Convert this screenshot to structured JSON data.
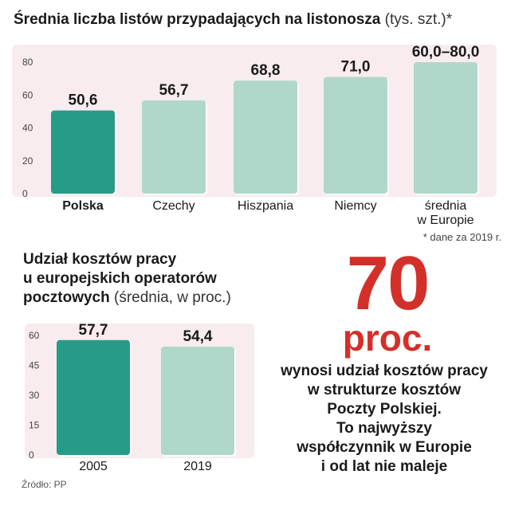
{
  "chart1": {
    "title": "Średnia liczba listów przypadających na listonosza",
    "subtitle": "(tys. szt.)*",
    "footnote": "* dane za 2019 r."
  },
  "chart2": {
    "title_lines": [
      "Udział kosztów pracy",
      "u europejskich operatorów",
      "pocztowych"
    ],
    "subtitle": "(średnia, w proc.)"
  },
  "highlight": {
    "value": "70",
    "unit": "proc.",
    "description_lines": [
      "wynosi udział kosztów pracy",
      "w strukturze kosztów",
      "Poczty Polskiej.",
      "To najwyższy",
      "współczynnik w Europie",
      "i od lat nie maleje"
    ]
  },
  "source": "Źródło: PP",
  "colors": {
    "accent_bar": "#269b88",
    "bar": "#b0d8ca",
    "plot_bg": "#f8ecee",
    "highlight": "#d3302a"
  },
  "chart_data": [
    {
      "type": "bar",
      "categories": [
        "Polska",
        "Czechy",
        "Hiszpania",
        "Niemcy",
        "średnia w Europie"
      ],
      "category_lines": [
        [
          "Polska"
        ],
        [
          "Czechy"
        ],
        [
          "Hiszpania"
        ],
        [
          "Niemcy"
        ],
        [
          "średnia",
          "w Europie"
        ]
      ],
      "values": [
        50.6,
        56.7,
        68.8,
        71.0,
        80.0
      ],
      "value_labels": [
        "50,6",
        "56,7",
        "68,8",
        "71,0",
        "60,0–80,0"
      ],
      "highlighted_category": "Polska",
      "yticks": [
        "0",
        "20",
        "40",
        "60",
        "80"
      ],
      "ylim": [
        0,
        80
      ],
      "grid": false
    },
    {
      "type": "bar",
      "categories": [
        "2005",
        "2019"
      ],
      "category_lines": [
        [
          "2005"
        ],
        [
          "2019"
        ]
      ],
      "values": [
        57.7,
        54.4
      ],
      "value_labels": [
        "57,7",
        "54,4"
      ],
      "highlighted_category": "2005",
      "yticks": [
        "0",
        "15",
        "30",
        "45",
        "60"
      ],
      "ylim": [
        0,
        60
      ],
      "grid": false
    }
  ]
}
